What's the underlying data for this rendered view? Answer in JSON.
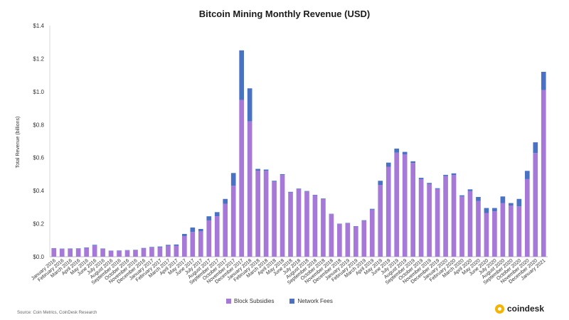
{
  "chart_data": {
    "type": "bar",
    "stacked": true,
    "title": "Bitcoin Mining Monthly Revenue (USD)",
    "ylabel": "Total Revenue (billions)",
    "xlabel": "",
    "ylim": [
      0,
      1.4
    ],
    "yticks": [
      "$0.0",
      "$0.2",
      "$0.4",
      "$0.6",
      "$0.8",
      "$1.0",
      "$1.2",
      "$1.4"
    ],
    "yticks_values": [
      0,
      0.2,
      0.4,
      0.6,
      0.8,
      1.0,
      1.2,
      1.4
    ],
    "grid": false,
    "legend_position": "bottom",
    "categories": [
      "January 2016",
      "February 2016",
      "March 2016",
      "April 2016",
      "May 2016",
      "June 2016",
      "July 2016",
      "August 2016",
      "September 2016",
      "October 2016",
      "November 2016",
      "December 2016",
      "January 2017",
      "February 2017",
      "March 2017",
      "April 2017",
      "May 2017",
      "June 2017",
      "July 2017",
      "August 2017",
      "September 2017",
      "October 2017",
      "November 2017",
      "December 2017",
      "January 2018",
      "February 2018",
      "March 2018",
      "April 2018",
      "May 2018",
      "June 2018",
      "July 2018",
      "August 2018",
      "September 2018",
      "October 2018",
      "November 2018",
      "December 2018",
      "January 2019",
      "February 2019",
      "March 2019",
      "April 2019",
      "May 2019",
      "June 2019",
      "July 2019",
      "August 2019",
      "September 2019",
      "October 2019",
      "November 2019",
      "December 2019",
      "January 2020",
      "February 2020",
      "March 2020",
      "April 2020",
      "May 2020",
      "June 2020",
      "July 2020",
      "August 2020",
      "September 2020",
      "October 2020",
      "November 2020",
      "December 2020",
      "January 2021"
    ],
    "series": [
      {
        "name": "Block Subsidies",
        "color": "#a678d8",
        "values": [
          0.05,
          0.047,
          0.048,
          0.049,
          0.053,
          0.068,
          0.048,
          0.035,
          0.036,
          0.038,
          0.04,
          0.05,
          0.055,
          0.058,
          0.066,
          0.066,
          0.125,
          0.15,
          0.155,
          0.22,
          0.245,
          0.32,
          0.43,
          0.95,
          0.82,
          0.52,
          0.52,
          0.455,
          0.495,
          0.39,
          0.41,
          0.395,
          0.372,
          0.35,
          0.258,
          0.198,
          0.203,
          0.183,
          0.218,
          0.285,
          0.435,
          0.545,
          0.63,
          0.62,
          0.568,
          0.47,
          0.44,
          0.41,
          0.488,
          0.495,
          0.365,
          0.398,
          0.337,
          0.265,
          0.275,
          0.325,
          0.31,
          0.305,
          0.47,
          0.628,
          1.01
        ]
      },
      {
        "name": "Network Fees",
        "color": "#4a72c4",
        "values": [
          0.002,
          0.002,
          0.002,
          0.002,
          0.003,
          0.004,
          0.002,
          0.002,
          0.002,
          0.002,
          0.002,
          0.003,
          0.004,
          0.004,
          0.006,
          0.008,
          0.013,
          0.027,
          0.013,
          0.025,
          0.025,
          0.03,
          0.077,
          0.3,
          0.2,
          0.012,
          0.008,
          0.005,
          0.005,
          0.003,
          0.003,
          0.003,
          0.003,
          0.003,
          0.002,
          0.002,
          0.002,
          0.002,
          0.003,
          0.005,
          0.025,
          0.025,
          0.025,
          0.015,
          0.01,
          0.008,
          0.007,
          0.005,
          0.008,
          0.01,
          0.007,
          0.01,
          0.025,
          0.03,
          0.02,
          0.04,
          0.015,
          0.045,
          0.05,
          0.065,
          0.11
        ]
      }
    ]
  },
  "footer": {
    "source": "Source: Coin Metrics, CoinDesk Research",
    "brand": "coindesk"
  }
}
